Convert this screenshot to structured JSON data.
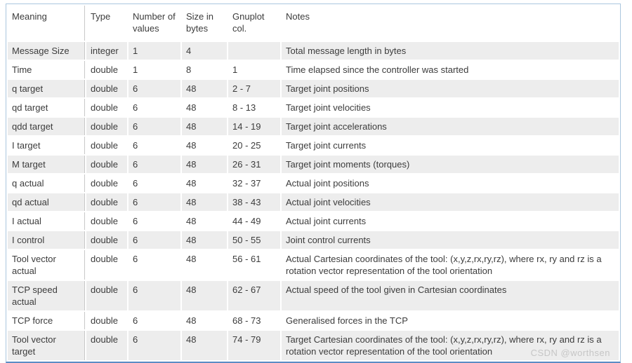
{
  "table": {
    "headers": [
      "Meaning",
      "Type",
      "Number of values",
      "Size in bytes",
      "Gnuplot col.",
      "Notes"
    ],
    "rows": [
      [
        "Message Size",
        "integer",
        "1",
        "4",
        "",
        "Total message length in bytes"
      ],
      [
        "Time",
        "double",
        "1",
        "8",
        "1",
        "Time elapsed since the controller was started"
      ],
      [
        "q target",
        "double",
        "6",
        "48",
        "2 - 7",
        "Target joint positions"
      ],
      [
        "qd target",
        "double",
        "6",
        "48",
        "8 - 13",
        "Target joint velocities"
      ],
      [
        "qdd target",
        "double",
        "6",
        "48",
        "14 - 19",
        "Target joint accelerations"
      ],
      [
        "I target",
        "double",
        "6",
        "48",
        "20 - 25",
        "Target joint currents"
      ],
      [
        "M target",
        "double",
        "6",
        "48",
        "26 - 31",
        "Target joint moments (torques)"
      ],
      [
        "q actual",
        "double",
        "6",
        "48",
        "32 - 37",
        "Actual joint positions"
      ],
      [
        "qd actual",
        "double",
        "6",
        "48",
        "38 - 43",
        "Actual joint velocities"
      ],
      [
        "I actual",
        "double",
        "6",
        "48",
        "44 - 49",
        "Actual joint currents"
      ],
      [
        "I control",
        "double",
        "6",
        "48",
        "50 - 55",
        "Joint control currents"
      ],
      [
        "Tool vector actual",
        "double",
        "6",
        "48",
        "56 - 61",
        "Actual Cartesian coordinates of the tool: (x,y,z,rx,ry,rz), where rx, ry and rz is a rotation vector representation of the tool orientation"
      ],
      [
        "TCP speed actual",
        "double",
        "6",
        "48",
        "62 - 67",
        "Actual speed of the tool given in Cartesian coordinates"
      ],
      [
        "TCP force",
        "double",
        "6",
        "48",
        "68 - 73",
        "Generalised forces in the TCP"
      ],
      [
        "Tool vector target",
        "double",
        "6",
        "48",
        "74 - 79",
        "Target Cartesian coordinates of the tool: (x,y,z,rx,ry,rz), where rx, ry and rz is a rotation vector representation of the tool orientation"
      ]
    ]
  },
  "watermark": {
    "text": "CSDN @worthsen"
  },
  "colors": {
    "row_stripe": "#ededed",
    "outer_border": "#aac6de",
    "bottom_border": "#5b8cc4",
    "column_divider": "#c8c8c8",
    "text": "#3c3c3c",
    "watermark_text": "#c6c6c6"
  }
}
